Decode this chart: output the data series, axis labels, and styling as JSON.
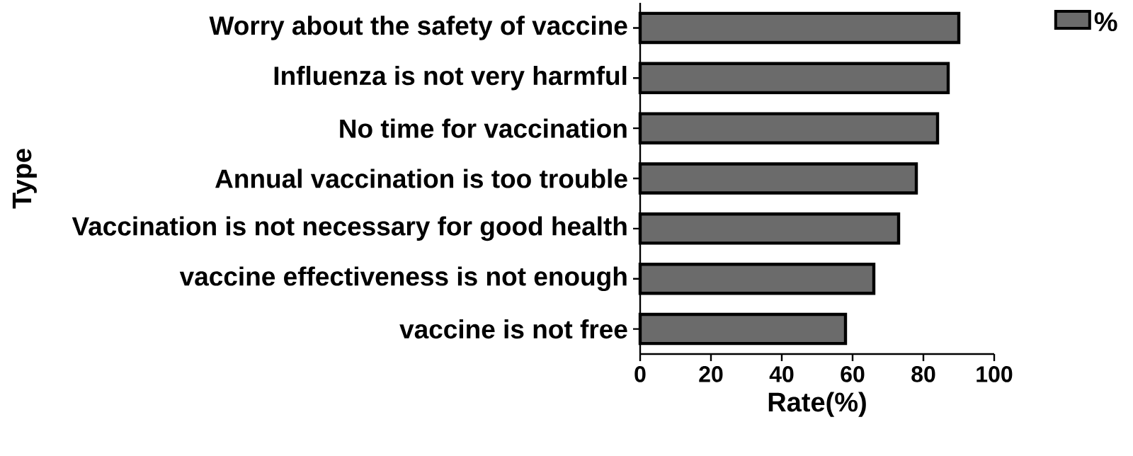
{
  "chart_data": {
    "type": "bar",
    "orientation": "horizontal",
    "xlabel": "Rate(%)",
    "ylabel": "Type",
    "categories": [
      "Worry about the safety of vaccine",
      "Influenza is not very harmful",
      "No time for vaccination",
      "Annual vaccination is too trouble",
      "Vaccination is not necessary for good health",
      "vaccine effectiveness is not enough",
      "vaccine is not free"
    ],
    "series": [
      {
        "name": "%",
        "color": "#6b6b6b",
        "values": [
          90,
          87,
          84,
          78,
          73,
          66,
          58
        ]
      }
    ],
    "xlim": [
      0,
      100
    ],
    "xticks": [
      0,
      20,
      40,
      60,
      80,
      100
    ],
    "legend": "top right"
  }
}
